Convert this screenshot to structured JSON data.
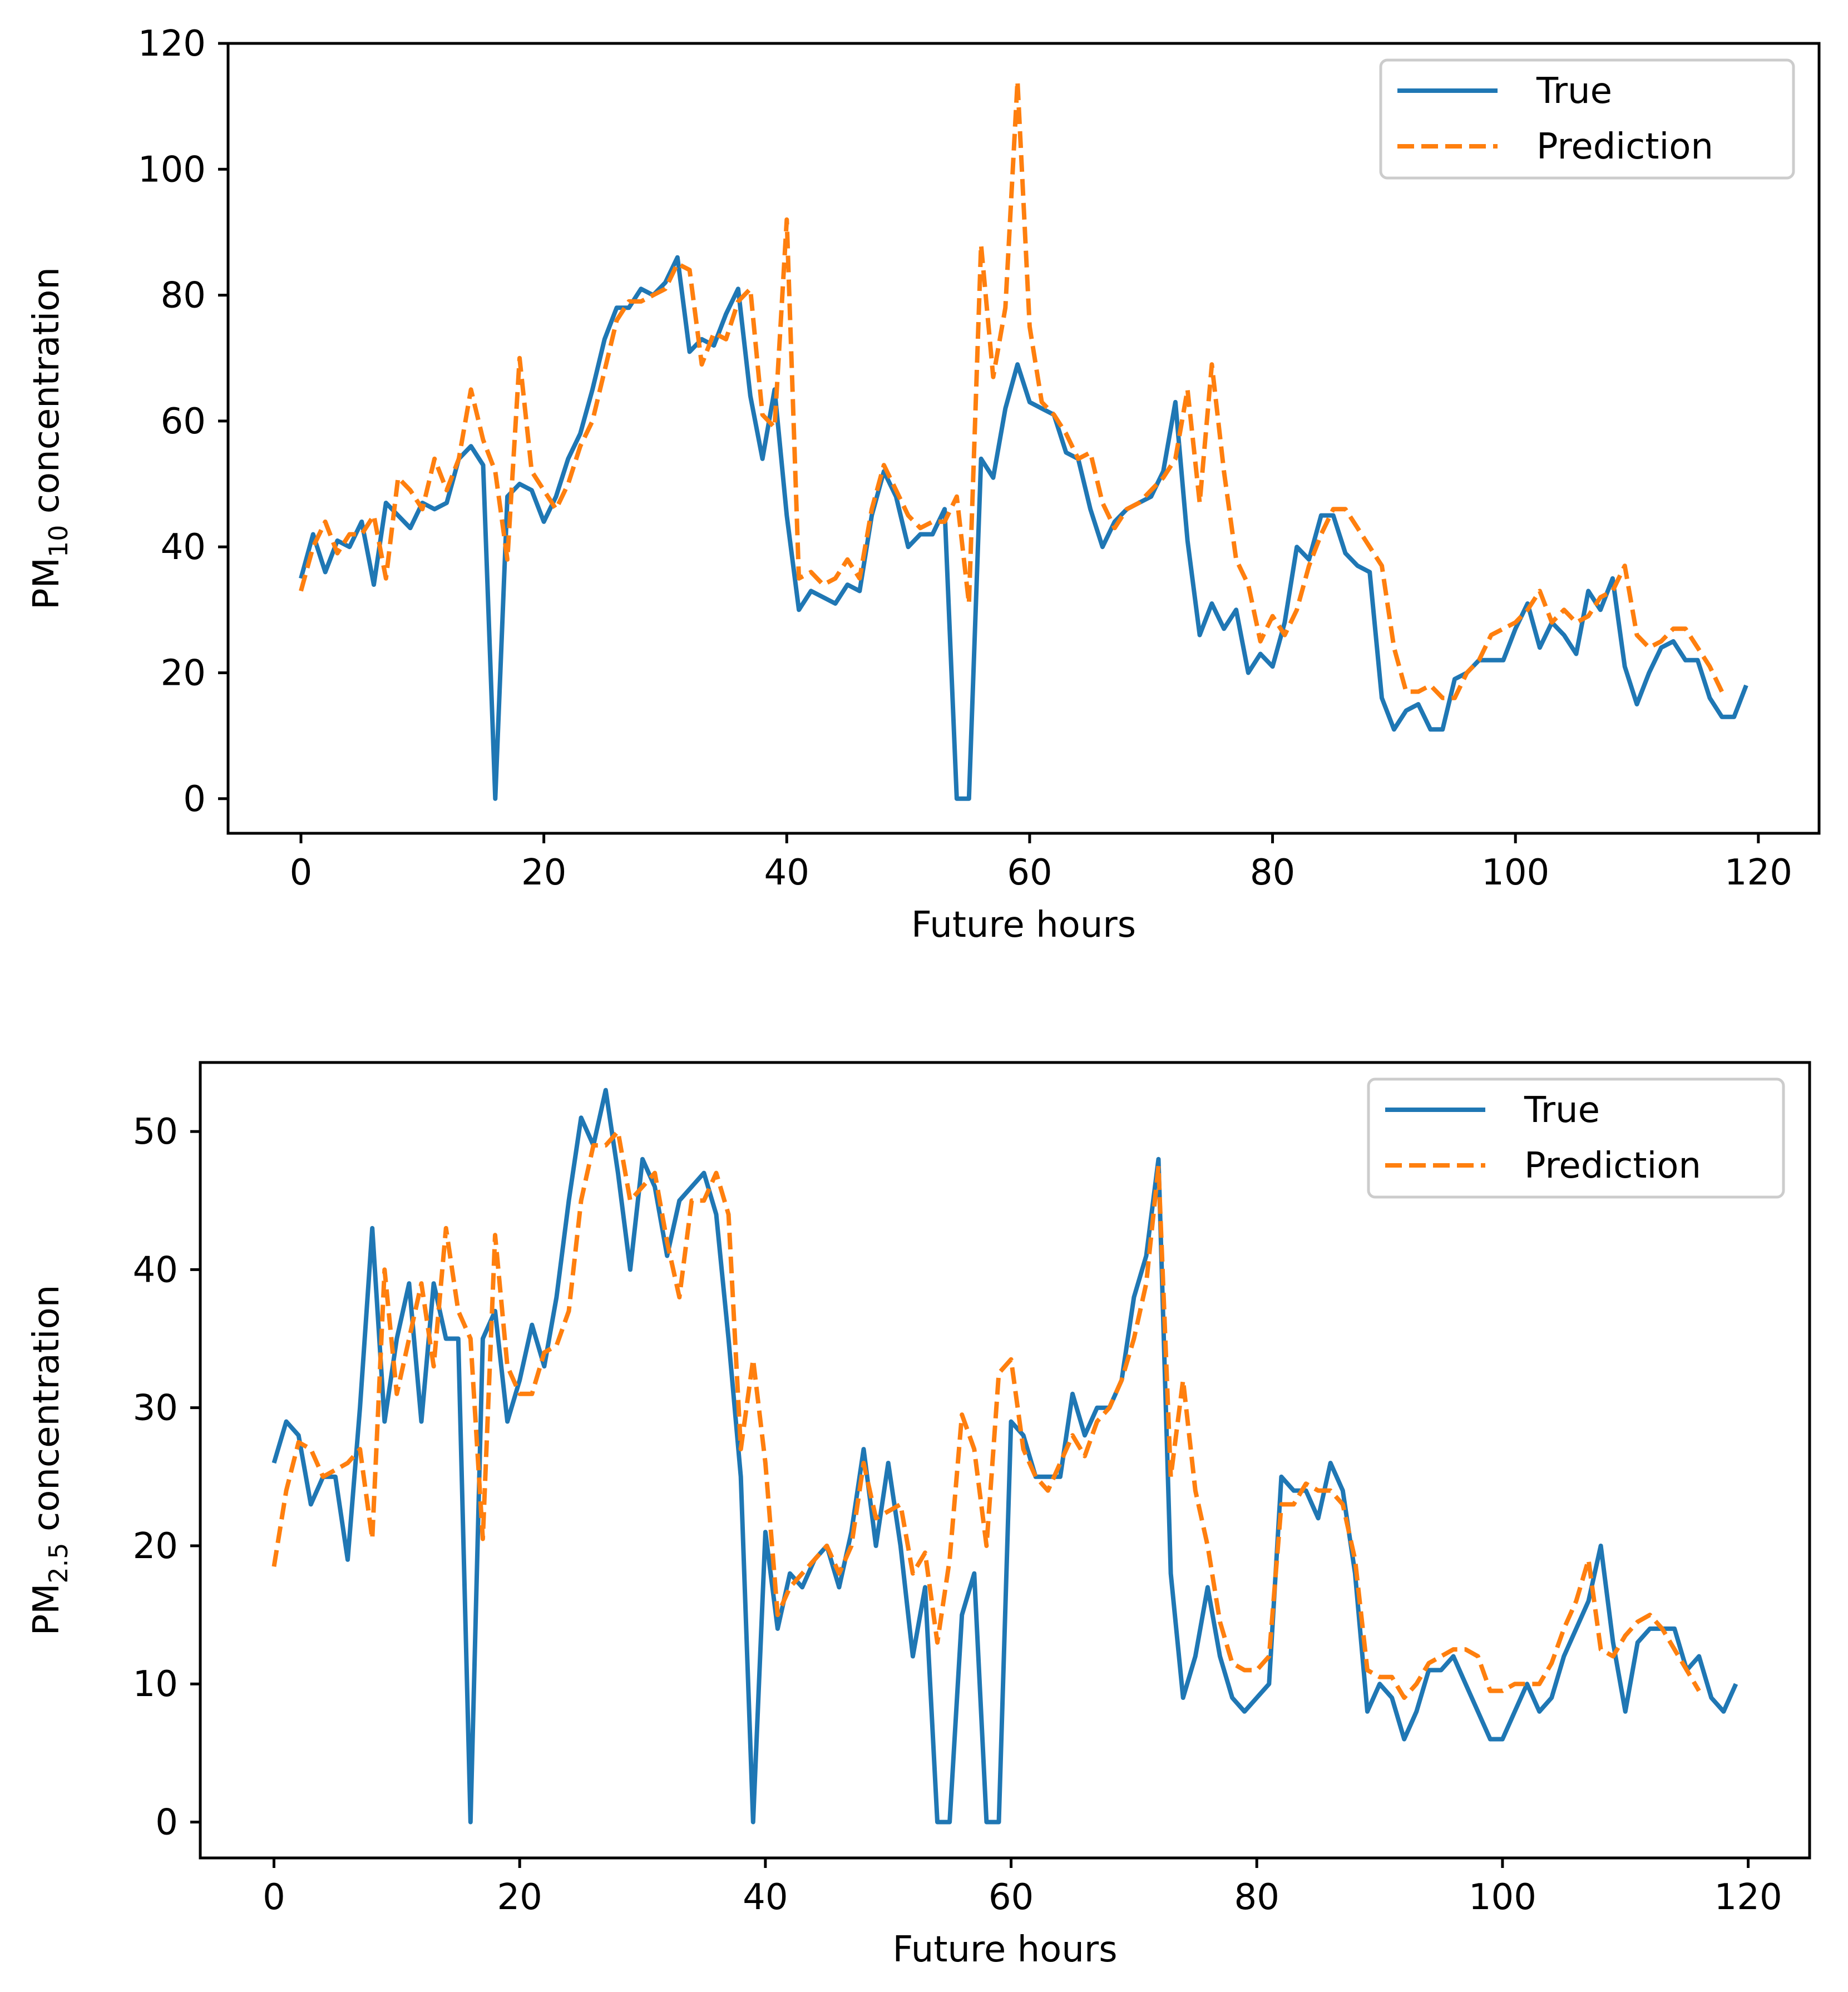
{
  "colors": {
    "true": "#1f77b4",
    "prediction": "#ff7f0e",
    "axis": "#000000",
    "legend_border": "#cccccc"
  },
  "chart_data": [
    {
      "type": "line",
      "title": "",
      "xlabel": "Future hours",
      "ylabel": {
        "base": "PM",
        "subscript": "10",
        "rest": " concentration"
      },
      "xlim": [
        -6,
        125
      ],
      "ylim": [
        -5.5,
        120
      ],
      "xticks": [
        0,
        20,
        40,
        60,
        80,
        100,
        120
      ],
      "yticks": [
        0,
        20,
        40,
        60,
        80,
        100,
        120
      ],
      "legend_position": "upper right",
      "series": [
        {
          "name": "True",
          "style": "solid",
          "values": [
            35,
            42,
            36,
            41,
            40,
            44,
            34,
            47,
            45,
            43,
            47,
            46,
            47,
            54,
            56,
            53,
            0,
            48,
            50,
            49,
            44,
            48,
            54,
            58,
            65,
            73,
            78,
            78,
            81,
            80,
            82,
            86,
            71,
            73,
            72,
            77,
            81,
            64,
            54,
            65,
            45,
            30,
            33,
            32,
            31,
            34,
            33,
            45,
            52,
            48,
            40,
            42,
            42,
            46,
            0,
            0,
            54,
            51,
            62,
            69,
            63,
            62,
            61,
            55,
            54,
            46,
            40,
            44,
            46,
            47,
            48,
            52,
            63,
            41,
            26,
            31,
            27,
            30,
            20,
            23,
            21,
            28,
            40,
            38,
            45,
            45,
            39,
            37,
            36,
            16,
            11,
            14,
            15,
            11,
            11,
            19,
            20,
            22,
            22,
            22,
            27,
            31,
            24,
            28,
            26,
            23,
            33,
            30,
            35,
            21,
            15,
            20,
            24,
            25,
            22,
            22,
            16,
            13,
            13,
            18
          ]
        },
        {
          "name": "Prediction",
          "style": "dashed",
          "values": [
            33,
            40,
            44,
            39,
            42,
            42,
            45,
            35,
            51,
            49,
            46,
            54,
            49,
            54,
            65,
            57,
            52,
            38,
            70,
            52,
            49,
            46,
            50,
            56,
            60,
            68,
            76,
            79,
            79,
            80,
            81,
            85,
            84,
            69,
            74,
            73,
            79,
            81,
            61,
            59,
            92,
            35,
            36,
            34,
            35,
            38,
            35,
            46,
            53,
            49,
            45,
            43,
            44,
            44,
            48,
            31,
            88,
            67,
            78,
            114,
            75,
            63,
            61,
            58,
            54,
            55,
            47,
            43,
            46,
            47,
            49,
            51,
            54,
            65,
            47,
            69,
            52,
            38,
            34,
            25,
            29,
            26,
            30,
            37,
            42,
            46,
            46,
            43,
            40,
            37,
            24,
            17,
            17,
            18,
            16,
            16,
            20,
            22,
            26,
            27,
            28,
            30,
            33,
            28,
            30,
            28,
            29,
            32,
            33,
            37,
            26,
            24,
            25,
            27,
            27,
            24,
            21,
            17
          ]
        }
      ]
    },
    {
      "type": "line",
      "title": "",
      "xlabel": "Future hours",
      "ylabel": {
        "base": "PM",
        "subscript": "2.5",
        "rest": " concentration"
      },
      "xlim": [
        -6,
        125
      ],
      "ylim": [
        -2.6,
        55
      ],
      "xticks": [
        0,
        20,
        40,
        60,
        80,
        100,
        120
      ],
      "yticks": [
        0,
        10,
        20,
        30,
        40,
        50
      ],
      "legend_position": "upper right",
      "series": [
        {
          "name": "True",
          "style": "solid",
          "values": [
            26,
            29,
            28,
            23,
            25,
            25,
            19,
            30,
            43,
            29,
            35,
            39,
            29,
            39,
            35,
            35,
            0,
            35,
            37,
            29,
            32,
            36,
            33,
            38,
            45,
            51,
            49,
            53,
            47,
            40,
            48,
            46,
            41,
            45,
            46,
            47,
            44,
            35,
            25,
            0,
            21,
            14,
            18,
            17,
            19,
            20,
            17,
            21,
            27,
            20,
            26,
            20,
            12,
            17,
            0,
            0,
            15,
            18,
            0,
            0,
            29,
            28,
            25,
            25,
            25,
            31,
            28,
            30,
            30,
            32,
            38,
            41,
            48,
            18,
            9,
            12,
            17,
            12,
            9,
            8,
            9,
            10,
            25,
            24,
            24,
            22,
            26,
            24,
            18,
            8,
            10,
            9,
            6,
            8,
            11,
            11,
            12,
            10,
            8,
            6,
            6,
            8,
            10,
            8,
            9,
            12,
            14,
            16,
            20,
            13,
            8,
            13,
            14,
            14,
            14,
            11,
            12,
            9,
            8,
            10
          ]
        },
        {
          "name": "Prediction",
          "style": "dashed",
          "values": [
            18.5,
            24,
            27.5,
            27,
            25,
            25.5,
            26,
            27,
            20.5,
            40,
            31,
            35,
            39,
            33,
            43,
            37,
            35,
            20.5,
            42.5,
            33,
            31,
            31,
            34,
            34.5,
            37,
            45,
            49,
            49,
            50,
            45,
            46,
            47,
            42,
            38,
            45,
            45,
            47,
            44,
            27,
            33.5,
            26,
            15,
            17,
            18,
            19,
            20,
            18,
            20,
            26,
            22,
            22.5,
            23,
            18,
            19.5,
            13,
            19,
            29.5,
            27,
            20,
            32.5,
            33.5,
            27,
            25,
            24,
            26,
            28,
            26.5,
            29,
            30,
            32,
            35,
            39,
            47.5,
            25,
            32,
            24,
            20,
            14.5,
            11.5,
            11,
            11,
            12,
            23,
            23,
            24.5,
            24,
            24,
            23,
            19,
            11,
            10.5,
            10.5,
            9,
            10,
            11.5,
            12,
            12.5,
            12.5,
            12,
            9.5,
            9.5,
            10,
            10,
            10,
            11.5,
            14,
            16,
            19,
            12.5,
            12,
            13.5,
            14.5,
            15,
            14,
            12.5,
            11,
            9.5
          ]
        }
      ]
    }
  ]
}
